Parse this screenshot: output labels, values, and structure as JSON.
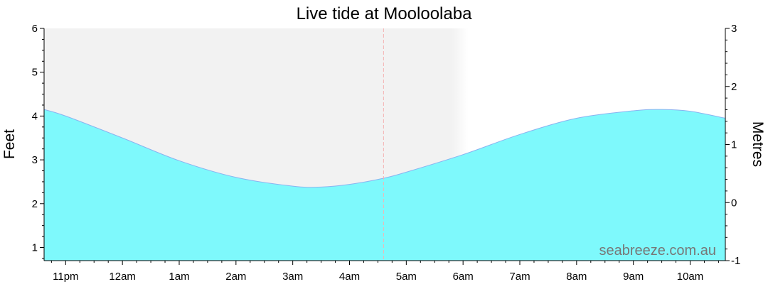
{
  "colors": {
    "tide_fill": "#7ef9fc",
    "tide_stroke": "#8ab3f0",
    "night_shade": "#f2f2f2",
    "now_line": "#f4b3b3",
    "watermark": "#777777"
  },
  "watermark": "seabreeze.com.au",
  "chart_data": {
    "type": "area",
    "title": "Live tide at Mooloolaba",
    "ylabel_left": "Feet",
    "ylabel_right": "Metres",
    "xlabel": "",
    "x_ticks": [
      "11pm",
      "12am",
      "1am",
      "2am",
      "3am",
      "4am",
      "5am",
      "6am",
      "7am",
      "8am",
      "9am",
      "10am"
    ],
    "xlim_hours": [
      22.62,
      34.62
    ],
    "ylim_feet": [
      0.7,
      6.0
    ],
    "ylim_metres": [
      -1,
      3
    ],
    "y_ticks_feet": [
      1,
      2,
      3,
      4,
      5,
      6
    ],
    "y_ticks_metres": [
      -1,
      0,
      1,
      2,
      3
    ],
    "night_shading_hours": [
      22.62,
      30.1
    ],
    "now_hour": 28.6,
    "now_label": "",
    "grid": false,
    "legend": "none",
    "series": [
      {
        "unit": "feet",
        "x_hours": [
          22.62,
          23.0,
          24.0,
          25.0,
          26.0,
          27.0,
          27.5,
          28.0,
          28.6,
          29.0,
          30.0,
          31.0,
          32.0,
          33.0,
          33.5,
          34.0,
          34.62
        ],
        "values": [
          4.15,
          4.0,
          3.5,
          2.98,
          2.6,
          2.4,
          2.38,
          2.44,
          2.58,
          2.72,
          3.12,
          3.58,
          3.95,
          4.12,
          4.15,
          4.11,
          3.95
        ]
      }
    ]
  }
}
